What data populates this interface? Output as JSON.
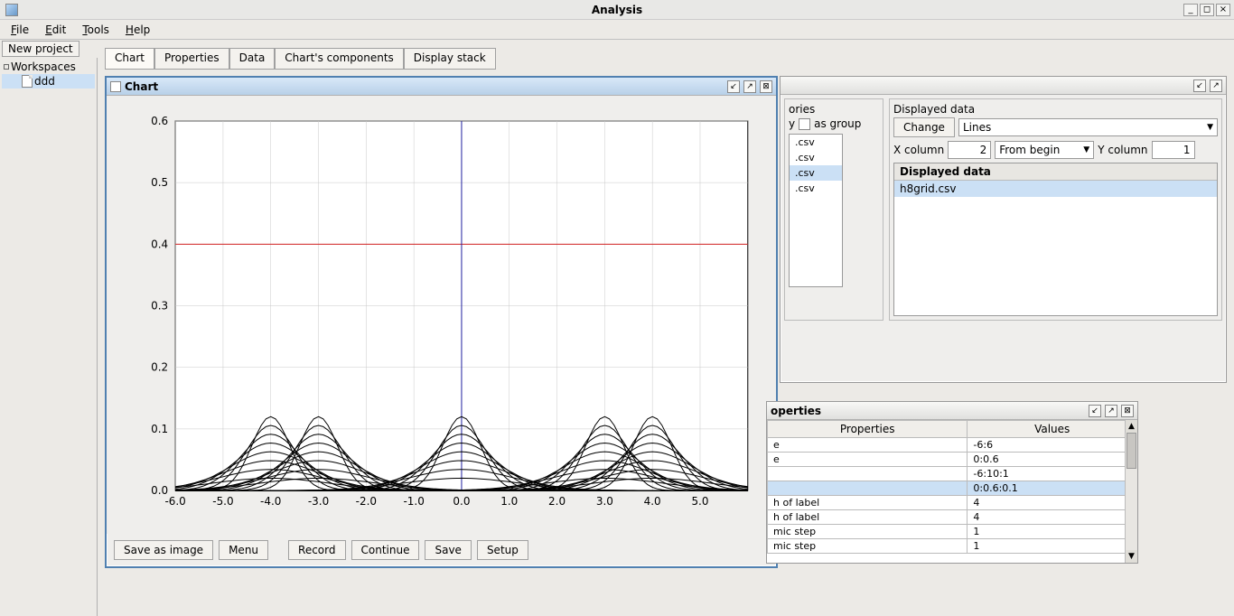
{
  "window": {
    "title": "Analysis"
  },
  "menubar": {
    "items": [
      "File",
      "Edit",
      "Tools",
      "Help"
    ]
  },
  "toolbar": {
    "new_project": "New project"
  },
  "sidebar": {
    "root": "Workspaces",
    "child": "ddd"
  },
  "tabs": {
    "items": [
      "Chart",
      "Properties",
      "Data",
      "Chart's components",
      "Display stack"
    ],
    "active": 0
  },
  "chart_panel": {
    "title": "Chart",
    "buttons": [
      "Save as image",
      "Menu",
      "Record",
      "Continue",
      "Save",
      "Setup"
    ],
    "plot": {
      "type": "line-multi",
      "xlim": [
        -6.0,
        6.0
      ],
      "ylim": [
        0.0,
        0.6
      ],
      "xticks": [
        -6.0,
        -5.0,
        -4.0,
        -3.0,
        -2.0,
        -1.0,
        0.0,
        1.0,
        2.0,
        3.0,
        4.0,
        5.0
      ],
      "yticks": [
        0.0,
        0.1,
        0.2,
        0.3,
        0.4,
        0.5,
        0.6
      ],
      "xtick_labels": [
        "-6.0",
        "-5.0",
        "-4.0",
        "-3.0",
        "-2.0",
        "-1.0",
        "0.0",
        "1.0",
        "2.0",
        "3.0",
        "4.0",
        "5.0"
      ],
      "ytick_labels": [
        "0.0",
        "0.1",
        "0.2",
        "0.3",
        "0.4",
        "0.5",
        "0.6"
      ],
      "grid_color": "#c8c8c8",
      "background_color": "#ffffff",
      "axis_color": "#000000",
      "tick_font_size": 11,
      "reference_lines": [
        {
          "orientation": "h",
          "y": 0.4,
          "color": "#d02020",
          "width": 1
        },
        {
          "orientation": "v",
          "x": 0.0,
          "color": "#2020a0",
          "width": 1
        }
      ],
      "gaussian_groups": {
        "centers": [
          -4.0,
          -3.0,
          0.0,
          3.0,
          4.0
        ],
        "per_center_curves": 8,
        "peak_max": 0.12,
        "peak_min": 0.02,
        "sigma_min": 0.4,
        "sigma_max": 1.2,
        "line_color": "#000000",
        "line_width": 1
      }
    }
  },
  "right_panel": {
    "header_left": "ories",
    "header_right": "Displayed data",
    "y_label_frag": "y",
    "as_group": "as group",
    "change": "Change",
    "change_value": "Lines",
    "xcol_label": "X column",
    "xcol_value": "2",
    "from_begin": "From begin",
    "ycol_label": "Y column",
    "ycol_value": "1",
    "file_list": [
      ".csv",
      ".csv",
      ".csv",
      ".csv"
    ],
    "file_list_selected": 2,
    "displayed_data_head": "Displayed data",
    "displayed_items": [
      "h8grid.csv"
    ]
  },
  "props_panel": {
    "title": "operties",
    "columns": [
      "Properties",
      "Values"
    ],
    "rows": [
      {
        "prop": "e",
        "val": "-6:6"
      },
      {
        "prop": "e",
        "val": "0:0.6"
      },
      {
        "prop": "",
        "val": "-6:10:1"
      },
      {
        "prop": "",
        "val": "0:0.6:0.1",
        "sel": true
      },
      {
        "prop": "h of label",
        "val": "4"
      },
      {
        "prop": "h of label",
        "val": "4"
      },
      {
        "prop": "mic step",
        "val": "1"
      },
      {
        "prop": "mic step",
        "val": "1"
      }
    ]
  }
}
